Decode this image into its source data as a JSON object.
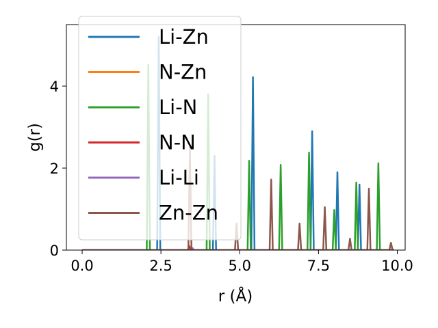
{
  "chart_data": {
    "type": "line",
    "xlabel": "r (Å)",
    "ylabel": "g(r)",
    "xlim": [
      -0.5,
      10.25
    ],
    "ylim": [
      0,
      5.5
    ],
    "xticks": [
      0.0,
      2.5,
      5.0,
      7.5,
      10.0
    ],
    "xtick_labels": [
      "0.0",
      "2.5",
      "5.0",
      "7.5",
      "10.0"
    ],
    "yticks": [
      0,
      2,
      4
    ],
    "ytick_labels": [
      "0",
      "2",
      "4"
    ],
    "legend_position": "upper-left",
    "series": [
      {
        "name": "Li-Zn",
        "color": "#1f77b4",
        "peaks": [
          [
            2.43,
            5.2
          ],
          [
            4.2,
            2.3
          ],
          [
            5.42,
            4.22
          ],
          [
            7.3,
            2.9
          ],
          [
            8.1,
            1.9
          ],
          [
            8.8,
            1.6
          ]
        ]
      },
      {
        "name": "N-Zn",
        "color": "#ff7f0e",
        "peaks": [
          [
            2.0,
            0.0
          ]
        ]
      },
      {
        "name": "Li-N",
        "color": "#2ca02c",
        "peaks": [
          [
            2.1,
            4.52
          ],
          [
            4.0,
            3.8
          ],
          [
            5.3,
            2.18
          ],
          [
            6.3,
            2.08
          ],
          [
            7.2,
            2.38
          ],
          [
            8.0,
            0.98
          ],
          [
            8.7,
            1.65
          ],
          [
            9.4,
            2.12
          ]
        ]
      },
      {
        "name": "N-N",
        "color": "#d62728",
        "peaks": [
          [
            3.4,
            0.1
          ]
        ]
      },
      {
        "name": "Li-Li",
        "color": "#9467bd",
        "peaks": [
          [
            3.5,
            0.05
          ]
        ]
      },
      {
        "name": "Zn-Zn",
        "color": "#8c564b",
        "peaks": [
          [
            3.42,
            2.5
          ],
          [
            4.9,
            0.65
          ],
          [
            6.0,
            1.72
          ],
          [
            6.9,
            0.65
          ],
          [
            7.7,
            1.05
          ],
          [
            8.5,
            0.28
          ],
          [
            9.1,
            1.5
          ],
          [
            9.8,
            0.18
          ]
        ]
      }
    ]
  }
}
